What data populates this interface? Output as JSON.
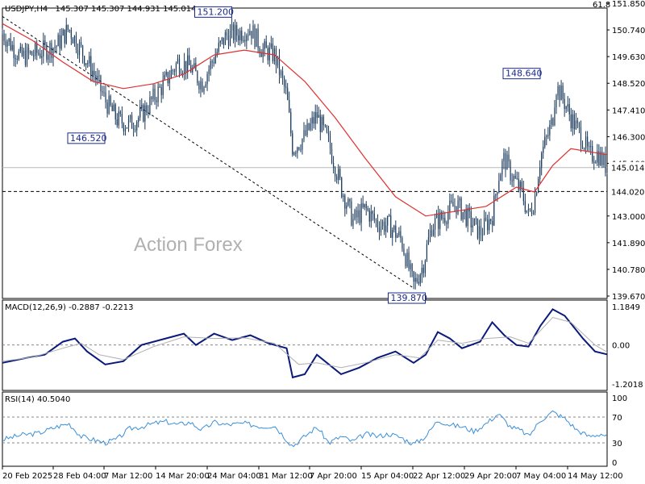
{
  "header": {
    "symbol": "USDJPY,H4",
    "ohlc": "145.307 145.307 144.931 145.014",
    "fib_label": "61.8"
  },
  "watermark": "Action Forex",
  "colors": {
    "candle": "#1a3a5c",
    "ma": "#e03030",
    "macd": "#0a1a7a",
    "signal": "#b0b0b0",
    "rsi": "#3a8fd8",
    "level_box": "#000000",
    "annot_box": "#1a2a8a"
  },
  "chart_data": [
    {
      "type": "candlestick",
      "title": "USDJPY,H4",
      "ylim": [
        139.67,
        151.85
      ],
      "yticks": [
        "151.850",
        "150.740",
        "149.630",
        "148.520",
        "147.410",
        "146.300",
        "145.190",
        "143.000",
        "141.890",
        "140.780",
        "139.670"
      ],
      "xticks": [
        "20 Feb 2025",
        "28 Feb 04:00",
        "7 Mar 12:00",
        "14 Mar 20:00",
        "24 Mar 04:00",
        "31 Mar 12:00",
        "7 Apr 20:00",
        "15 Apr 04:00",
        "22 Apr 12:00",
        "29 Apr 20:00",
        "7 May 04:00",
        "14 May 12:00"
      ],
      "close_path": [
        [
          0,
          150.6
        ],
        [
          0.03,
          149.6
        ],
        [
          0.06,
          149.8
        ],
        [
          0.09,
          150.1
        ],
        [
          0.11,
          150.8
        ],
        [
          0.13,
          149.9
        ],
        [
          0.15,
          149.0
        ],
        [
          0.17,
          147.8
        ],
        [
          0.19,
          147.0
        ],
        [
          0.21,
          146.8
        ],
        [
          0.23,
          147.2
        ],
        [
          0.25,
          147.9
        ],
        [
          0.27,
          148.6
        ],
        [
          0.29,
          149.4
        ],
        [
          0.31,
          149.2
        ],
        [
          0.33,
          148.5
        ],
        [
          0.35,
          149.6
        ],
        [
          0.37,
          150.5
        ],
        [
          0.39,
          150.6
        ],
        [
          0.41,
          150.8
        ],
        [
          0.43,
          149.9
        ],
        [
          0.45,
          149.7
        ],
        [
          0.47,
          148.0
        ],
        [
          0.48,
          145.8
        ],
        [
          0.5,
          146.3
        ],
        [
          0.52,
          147.2
        ],
        [
          0.54,
          146.0
        ],
        [
          0.56,
          144.2
        ],
        [
          0.58,
          142.8
        ],
        [
          0.6,
          143.3
        ],
        [
          0.62,
          142.7
        ],
        [
          0.64,
          142.6
        ],
        [
          0.66,
          142.0
        ],
        [
          0.67,
          141.0
        ],
        [
          0.68,
          140.1
        ],
        [
          0.695,
          140.9
        ],
        [
          0.71,
          142.6
        ],
        [
          0.73,
          143.0
        ],
        [
          0.75,
          143.5
        ],
        [
          0.77,
          142.9
        ],
        [
          0.79,
          142.3
        ],
        [
          0.81,
          143.0
        ],
        [
          0.82,
          144.6
        ],
        [
          0.83,
          145.4
        ],
        [
          0.84,
          144.8
        ],
        [
          0.86,
          143.9
        ],
        [
          0.87,
          143.0
        ],
        [
          0.88,
          143.7
        ],
        [
          0.89,
          145.5
        ],
        [
          0.9,
          146.2
        ],
        [
          0.91,
          147.0
        ],
        [
          0.915,
          148.4
        ],
        [
          0.925,
          148.0
        ],
        [
          0.94,
          147.1
        ],
        [
          0.96,
          146.2
        ],
        [
          0.97,
          145.5
        ],
        [
          0.985,
          145.6
        ],
        [
          1.0,
          145.0
        ]
      ],
      "ma_path": [
        [
          0,
          151.0
        ],
        [
          0.05,
          150.3
        ],
        [
          0.1,
          149.4
        ],
        [
          0.15,
          148.6
        ],
        [
          0.2,
          148.3
        ],
        [
          0.25,
          148.5
        ],
        [
          0.3,
          148.9
        ],
        [
          0.35,
          149.7
        ],
        [
          0.4,
          149.9
        ],
        [
          0.45,
          149.7
        ],
        [
          0.5,
          148.6
        ],
        [
          0.55,
          147.1
        ],
        [
          0.6,
          145.4
        ],
        [
          0.65,
          143.8
        ],
        [
          0.7,
          143.0
        ],
        [
          0.75,
          143.2
        ],
        [
          0.8,
          143.4
        ],
        [
          0.85,
          144.2
        ],
        [
          0.88,
          144.0
        ],
        [
          0.91,
          145.1
        ],
        [
          0.94,
          145.8
        ],
        [
          1.0,
          145.55
        ]
      ],
      "current_price": "145.014",
      "support_level": "144.020",
      "annotations": [
        {
          "text": "151.200",
          "value": 151.2,
          "pos": 0.35
        },
        {
          "text": "146.520",
          "value": 146.52,
          "pos": 0.14
        },
        {
          "text": "139.870",
          "value": 139.87,
          "pos": 0.67
        },
        {
          "text": "148.640",
          "value": 148.64,
          "pos": 0.86
        }
      ],
      "trendline": [
        [
          0.0,
          151.3
        ],
        [
          0.68,
          140.0
        ]
      ]
    },
    {
      "type": "line",
      "title": "MACD(12,26,9) -0.2887 -0.2213",
      "ylim": [
        -1.2018,
        1.1849
      ],
      "yticks": [
        "1.1849",
        "0.00",
        "-1.2018"
      ],
      "series": [
        {
          "name": "MACD",
          "values": [
            [
              0,
              -0.55
            ],
            [
              0.04,
              -0.4
            ],
            [
              0.07,
              -0.3
            ],
            [
              0.1,
              0.1
            ],
            [
              0.12,
              0.2
            ],
            [
              0.14,
              -0.2
            ],
            [
              0.17,
              -0.6
            ],
            [
              0.2,
              -0.5
            ],
            [
              0.23,
              0.0
            ],
            [
              0.27,
              0.2
            ],
            [
              0.3,
              0.35
            ],
            [
              0.32,
              0.0
            ],
            [
              0.35,
              0.35
            ],
            [
              0.38,
              0.15
            ],
            [
              0.41,
              0.3
            ],
            [
              0.44,
              0.05
            ],
            [
              0.47,
              -0.1
            ],
            [
              0.48,
              -1.0
            ],
            [
              0.5,
              -0.9
            ],
            [
              0.52,
              -0.3
            ],
            [
              0.54,
              -0.6
            ],
            [
              0.56,
              -0.9
            ],
            [
              0.59,
              -0.7
            ],
            [
              0.62,
              -0.4
            ],
            [
              0.65,
              -0.2
            ],
            [
              0.68,
              -0.55
            ],
            [
              0.7,
              -0.3
            ],
            [
              0.72,
              0.4
            ],
            [
              0.74,
              0.2
            ],
            [
              0.76,
              -0.1
            ],
            [
              0.79,
              0.1
            ],
            [
              0.81,
              0.7
            ],
            [
              0.83,
              0.3
            ],
            [
              0.85,
              0.0
            ],
            [
              0.87,
              -0.05
            ],
            [
              0.89,
              0.6
            ],
            [
              0.91,
              1.1
            ],
            [
              0.93,
              0.9
            ],
            [
              0.96,
              0.2
            ],
            [
              0.98,
              -0.2
            ],
            [
              1.0,
              -0.29
            ]
          ]
        },
        {
          "name": "Signal",
          "values": [
            [
              0,
              -0.5
            ],
            [
              0.05,
              -0.38
            ],
            [
              0.1,
              -0.1
            ],
            [
              0.13,
              0.05
            ],
            [
              0.16,
              -0.3
            ],
            [
              0.2,
              -0.45
            ],
            [
              0.25,
              -0.05
            ],
            [
              0.3,
              0.25
            ],
            [
              0.35,
              0.2
            ],
            [
              0.4,
              0.22
            ],
            [
              0.45,
              0.05
            ],
            [
              0.49,
              -0.6
            ],
            [
              0.52,
              -0.55
            ],
            [
              0.56,
              -0.7
            ],
            [
              0.6,
              -0.55
            ],
            [
              0.65,
              -0.3
            ],
            [
              0.69,
              -0.4
            ],
            [
              0.72,
              0.15
            ],
            [
              0.76,
              0.05
            ],
            [
              0.8,
              0.2
            ],
            [
              0.84,
              0.25
            ],
            [
              0.87,
              0.05
            ],
            [
              0.91,
              0.85
            ],
            [
              0.94,
              0.7
            ],
            [
              0.98,
              0.0
            ],
            [
              1.0,
              -0.22
            ]
          ]
        }
      ]
    },
    {
      "type": "line",
      "title": "RSI(14) 40.5040",
      "ylim": [
        0,
        100
      ],
      "yticks": [
        "100",
        "70",
        "30",
        "0"
      ],
      "levels": [
        70,
        30
      ],
      "series": [
        {
          "name": "RSI(14)",
          "values": [
            [
              0,
              35
            ],
            [
              0.03,
              42
            ],
            [
              0.06,
              45
            ],
            [
              0.09,
              55
            ],
            [
              0.11,
              60
            ],
            [
              0.13,
              40
            ],
            [
              0.15,
              35
            ],
            [
              0.17,
              30
            ],
            [
              0.19,
              36
            ],
            [
              0.21,
              52
            ],
            [
              0.23,
              55
            ],
            [
              0.25,
              60
            ],
            [
              0.27,
              63
            ],
            [
              0.29,
              58
            ],
            [
              0.31,
              62
            ],
            [
              0.33,
              50
            ],
            [
              0.35,
              62
            ],
            [
              0.37,
              58
            ],
            [
              0.4,
              60
            ],
            [
              0.43,
              55
            ],
            [
              0.45,
              57
            ],
            [
              0.47,
              35
            ],
            [
              0.48,
              25
            ],
            [
              0.5,
              40
            ],
            [
              0.52,
              55
            ],
            [
              0.54,
              30
            ],
            [
              0.56,
              40
            ],
            [
              0.58,
              32
            ],
            [
              0.6,
              44
            ],
            [
              0.62,
              40
            ],
            [
              0.64,
              44
            ],
            [
              0.66,
              38
            ],
            [
              0.68,
              28
            ],
            [
              0.7,
              40
            ],
            [
              0.72,
              65
            ],
            [
              0.74,
              58
            ],
            [
              0.76,
              55
            ],
            [
              0.78,
              48
            ],
            [
              0.8,
              60
            ],
            [
              0.82,
              75
            ],
            [
              0.84,
              55
            ],
            [
              0.86,
              48
            ],
            [
              0.87,
              40
            ],
            [
              0.89,
              65
            ],
            [
              0.91,
              78
            ],
            [
              0.93,
              68
            ],
            [
              0.95,
              50
            ],
            [
              0.97,
              40
            ],
            [
              0.99,
              44
            ],
            [
              1.0,
              40.5
            ]
          ]
        }
      ]
    }
  ]
}
